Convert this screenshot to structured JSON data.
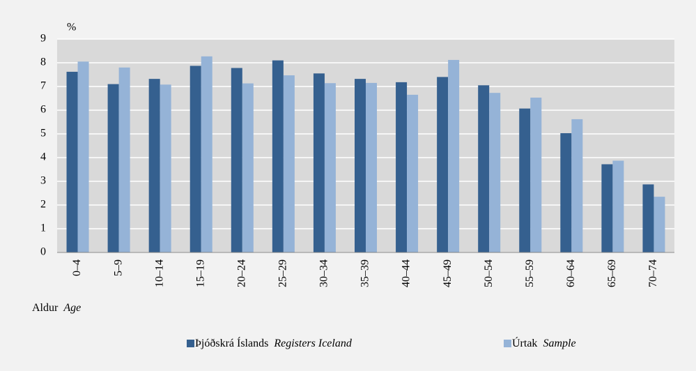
{
  "chart_data": {
    "type": "bar",
    "y_unit": "%",
    "x_label": "Aldur",
    "x_label_en": "Age",
    "categories": [
      "0–4",
      "5–9",
      "10–14",
      "15–19",
      "20–24",
      "25–29",
      "30–34",
      "35–39",
      "40–44",
      "45–49",
      "50–54",
      "55–59",
      "60–64",
      "65–69",
      "70–74"
    ],
    "series": [
      {
        "name": "Þjóðskrá Íslands",
        "name_en": "Registers Iceland",
        "color": "#35608f",
        "values": [
          7.62,
          7.1,
          7.32,
          7.87,
          7.78,
          8.1,
          7.55,
          7.32,
          7.18,
          7.4,
          7.05,
          6.07,
          5.03,
          3.72,
          2.87
        ]
      },
      {
        "name": "Úrtak",
        "name_en": "Sample",
        "color": "#95b3d7",
        "values": [
          8.05,
          7.8,
          7.08,
          8.27,
          7.13,
          7.47,
          7.14,
          7.15,
          6.65,
          8.12,
          6.73,
          6.53,
          5.62,
          3.87,
          2.35
        ]
      }
    ],
    "ylim": [
      0,
      9
    ],
    "yticks": [
      0,
      1,
      2,
      3,
      4,
      5,
      6,
      7,
      8,
      9
    ],
    "grid": true
  }
}
